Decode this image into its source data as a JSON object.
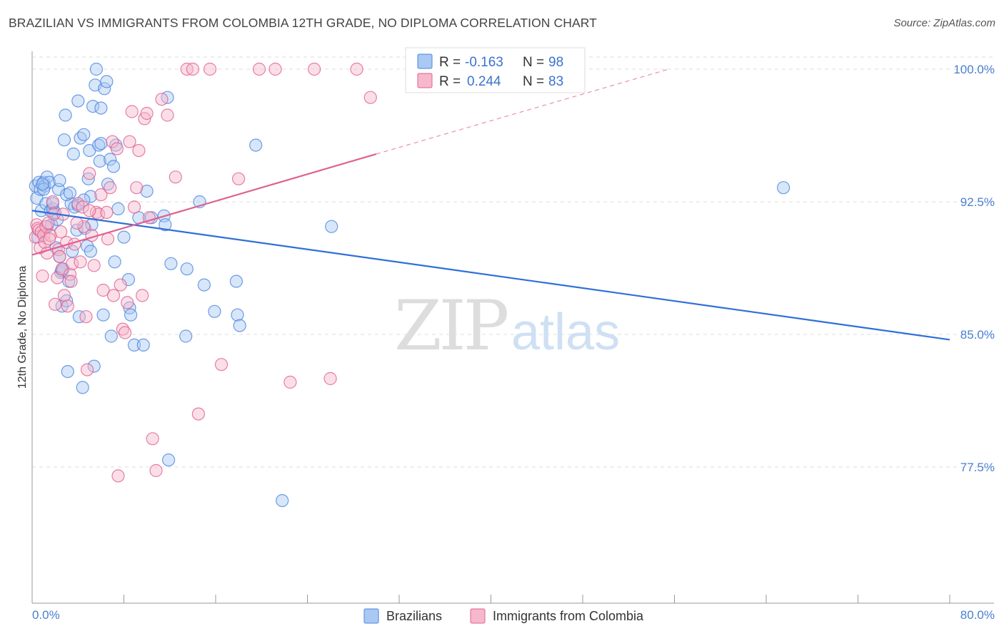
{
  "title": "BRAZILIAN VS IMMIGRANTS FROM COLOMBIA 12TH GRADE, NO DIPLOMA CORRELATION CHART",
  "source": "Source: ZipAtlas.com",
  "watermark": {
    "zip": "ZIP",
    "atlas": "atlas"
  },
  "colors": {
    "blue": "#4a86e0",
    "blue_fill": "#a9c8f2",
    "pink": "#e0608f",
    "pink_fill": "#f6b8cc",
    "axis_text": "#4a7fd0",
    "grid": "#dddddd"
  },
  "legend": {
    "rows": [
      {
        "r_label": "R =",
        "r_value": "-0.163",
        "n_label": "N =",
        "n_value": "98",
        "series": "blue"
      },
      {
        "r_label": "R =",
        "r_value": "0.244",
        "n_label": "N =",
        "n_value": "83",
        "series": "pink"
      }
    ]
  },
  "chart_data": {
    "type": "scatter",
    "title": "BRAZILIAN VS IMMIGRANTS FROM COLOMBIA 12TH GRADE, NO DIPLOMA CORRELATION CHART",
    "xlabel": "",
    "ylabel": "12th Grade, No Diploma",
    "xlim": [
      0,
      80
    ],
    "ylim": [
      70,
      101
    ],
    "x_tick_labels": [
      "0.0%",
      "80.0%"
    ],
    "y_ticks": [
      77.5,
      85.0,
      92.5,
      100.0
    ],
    "y_tick_labels": [
      "77.5%",
      "85.0%",
      "92.5%",
      "100.0%"
    ],
    "series": [
      {
        "name": "Brazilians",
        "color": "blue",
        "trend": {
          "x0": 0,
          "y0": 92.0,
          "x1": 80,
          "y1": 84.7,
          "dash_from": null
        },
        "points": [
          [
            0.3,
            93.4
          ],
          [
            0.4,
            92.7
          ],
          [
            0.5,
            90.5
          ],
          [
            0.6,
            93.6
          ],
          [
            0.7,
            93.2
          ],
          [
            0.8,
            92.0
          ],
          [
            1.0,
            93.6
          ],
          [
            1.1,
            93.4
          ],
          [
            1.2,
            92.4
          ],
          [
            1.3,
            91.1
          ],
          [
            1.3,
            93.9
          ],
          [
            1.5,
            93.6
          ],
          [
            1.6,
            92.0
          ],
          [
            1.7,
            91.2
          ],
          [
            1.8,
            92.1
          ],
          [
            2.1,
            89.9
          ],
          [
            2.2,
            91.5
          ],
          [
            2.3,
            93.2
          ],
          [
            2.4,
            93.7
          ],
          [
            2.4,
            89.4
          ],
          [
            2.5,
            88.5
          ],
          [
            2.6,
            88.6
          ],
          [
            2.6,
            86.6
          ],
          [
            2.8,
            96.0
          ],
          [
            2.9,
            97.4
          ],
          [
            3.0,
            86.9
          ],
          [
            3.1,
            82.9
          ],
          [
            3.2,
            88.0
          ],
          [
            3.4,
            92.4
          ],
          [
            3.5,
            89.7
          ],
          [
            3.6,
            95.2
          ],
          [
            3.7,
            92.2
          ],
          [
            3.9,
            90.9
          ],
          [
            4.0,
            98.2
          ],
          [
            4.0,
            92.3
          ],
          [
            4.1,
            86.0
          ],
          [
            4.2,
            96.1
          ],
          [
            4.4,
            82.0
          ],
          [
            4.5,
            96.3
          ],
          [
            4.6,
            91.0
          ],
          [
            4.8,
            90.0
          ],
          [
            4.9,
            93.8
          ],
          [
            5.0,
            95.4
          ],
          [
            5.1,
            92.8
          ],
          [
            5.1,
            89.7
          ],
          [
            5.3,
            97.9
          ],
          [
            5.4,
            83.2
          ],
          [
            5.5,
            99.1
          ],
          [
            5.6,
            100.0
          ],
          [
            5.8,
            95.7
          ],
          [
            5.9,
            94.8
          ],
          [
            6.0,
            97.8
          ],
          [
            6.2,
            86.1
          ],
          [
            6.3,
            98.9
          ],
          [
            6.5,
            99.3
          ],
          [
            6.6,
            93.5
          ],
          [
            6.8,
            94.9
          ],
          [
            6.9,
            84.9
          ],
          [
            7.1,
            94.5
          ],
          [
            7.2,
            89.1
          ],
          [
            7.3,
            95.7
          ],
          [
            8.4,
            88.1
          ],
          [
            8.5,
            86.5
          ],
          [
            8.6,
            86.1
          ],
          [
            8.9,
            84.4
          ],
          [
            9.3,
            91.6
          ],
          [
            9.7,
            84.4
          ],
          [
            10.0,
            93.1
          ],
          [
            10.4,
            91.6
          ],
          [
            11.5,
            91.7
          ],
          [
            11.6,
            91.2
          ],
          [
            11.8,
            98.4
          ],
          [
            11.9,
            77.9
          ],
          [
            12.1,
            89.0
          ],
          [
            13.4,
            84.9
          ],
          [
            13.5,
            88.7
          ],
          [
            14.6,
            92.5
          ],
          [
            15.0,
            87.8
          ],
          [
            15.9,
            86.3
          ],
          [
            17.8,
            88.0
          ],
          [
            17.9,
            86.1
          ],
          [
            18.1,
            85.5
          ],
          [
            19.5,
            95.7
          ],
          [
            21.8,
            75.6
          ],
          [
            26.1,
            91.1
          ],
          [
            65.5,
            93.3
          ],
          [
            3.0,
            92.9
          ],
          [
            7.5,
            92.1
          ],
          [
            2.0,
            91.9
          ],
          [
            1.0,
            93.2
          ],
          [
            6.0,
            95.8
          ],
          [
            4.5,
            92.6
          ],
          [
            2.7,
            88.7
          ],
          [
            5.2,
            91.2
          ],
          [
            8.0,
            90.5
          ],
          [
            1.8,
            92.4
          ],
          [
            0.9,
            93.5
          ],
          [
            3.3,
            93.0
          ]
        ]
      },
      {
        "name": "Immigrants from Colombia",
        "color": "pink",
        "trend": {
          "x0": 0,
          "y0": 89.5,
          "x1": 30,
          "y1": 95.2,
          "dash_from": 30,
          "x2": 55.5,
          "y2": 100.0
        },
        "points": [
          [
            0.3,
            90.5
          ],
          [
            0.4,
            91.2
          ],
          [
            0.5,
            91.0
          ],
          [
            0.6,
            90.9
          ],
          [
            0.7,
            89.9
          ],
          [
            0.8,
            90.8
          ],
          [
            0.9,
            88.3
          ],
          [
            1.0,
            90.6
          ],
          [
            1.1,
            90.2
          ],
          [
            1.2,
            91.1
          ],
          [
            1.3,
            89.6
          ],
          [
            1.4,
            91.3
          ],
          [
            1.6,
            90.6
          ],
          [
            1.8,
            92.5
          ],
          [
            1.9,
            91.8
          ],
          [
            2.0,
            86.7
          ],
          [
            2.2,
            88.2
          ],
          [
            2.3,
            89.8
          ],
          [
            2.4,
            89.4
          ],
          [
            2.5,
            90.8
          ],
          [
            2.6,
            88.7
          ],
          [
            2.8,
            87.2
          ],
          [
            3.0,
            90.2
          ],
          [
            3.1,
            86.6
          ],
          [
            3.3,
            88.4
          ],
          [
            3.4,
            88.0
          ],
          [
            3.5,
            89.0
          ],
          [
            3.7,
            90.1
          ],
          [
            4.0,
            92.4
          ],
          [
            4.2,
            89.1
          ],
          [
            4.4,
            92.2
          ],
          [
            4.5,
            91.1
          ],
          [
            4.7,
            86.0
          ],
          [
            4.8,
            83.0
          ],
          [
            5.0,
            94.1
          ],
          [
            5.2,
            90.6
          ],
          [
            5.4,
            88.9
          ],
          [
            5.6,
            91.9
          ],
          [
            5.8,
            91.8
          ],
          [
            6.0,
            92.9
          ],
          [
            6.2,
            87.5
          ],
          [
            6.5,
            91.9
          ],
          [
            6.8,
            93.3
          ],
          [
            7.0,
            95.9
          ],
          [
            7.1,
            87.2
          ],
          [
            7.4,
            95.5
          ],
          [
            7.5,
            77.0
          ],
          [
            7.7,
            87.8
          ],
          [
            7.9,
            85.3
          ],
          [
            8.1,
            85.1
          ],
          [
            8.3,
            86.8
          ],
          [
            8.5,
            95.9
          ],
          [
            8.7,
            97.6
          ],
          [
            9.1,
            93.3
          ],
          [
            9.3,
            95.4
          ],
          [
            9.6,
            87.2
          ],
          [
            9.8,
            97.2
          ],
          [
            10.0,
            97.5
          ],
          [
            10.5,
            79.1
          ],
          [
            10.8,
            77.3
          ],
          [
            11.3,
            98.3
          ],
          [
            11.8,
            97.4
          ],
          [
            12.5,
            93.9
          ],
          [
            13.5,
            100.0
          ],
          [
            14.0,
            100.0
          ],
          [
            14.5,
            80.5
          ],
          [
            15.5,
            100.0
          ],
          [
            16.5,
            83.3
          ],
          [
            18.0,
            93.8
          ],
          [
            19.8,
            100.0
          ],
          [
            21.2,
            100.0
          ],
          [
            22.5,
            82.3
          ],
          [
            24.6,
            100.0
          ],
          [
            26.0,
            82.5
          ],
          [
            28.3,
            100.0
          ],
          [
            29.5,
            98.4
          ],
          [
            3.9,
            91.3
          ],
          [
            6.6,
            90.4
          ],
          [
            8.9,
            92.2
          ],
          [
            10.2,
            91.6
          ],
          [
            2.7,
            91.8
          ],
          [
            1.5,
            90.4
          ],
          [
            5.0,
            92.0
          ]
        ]
      }
    ]
  },
  "bottom_legend": [
    {
      "label": "Brazilians",
      "series": "blue"
    },
    {
      "label": "Immigrants from Colombia",
      "series": "pink"
    }
  ]
}
